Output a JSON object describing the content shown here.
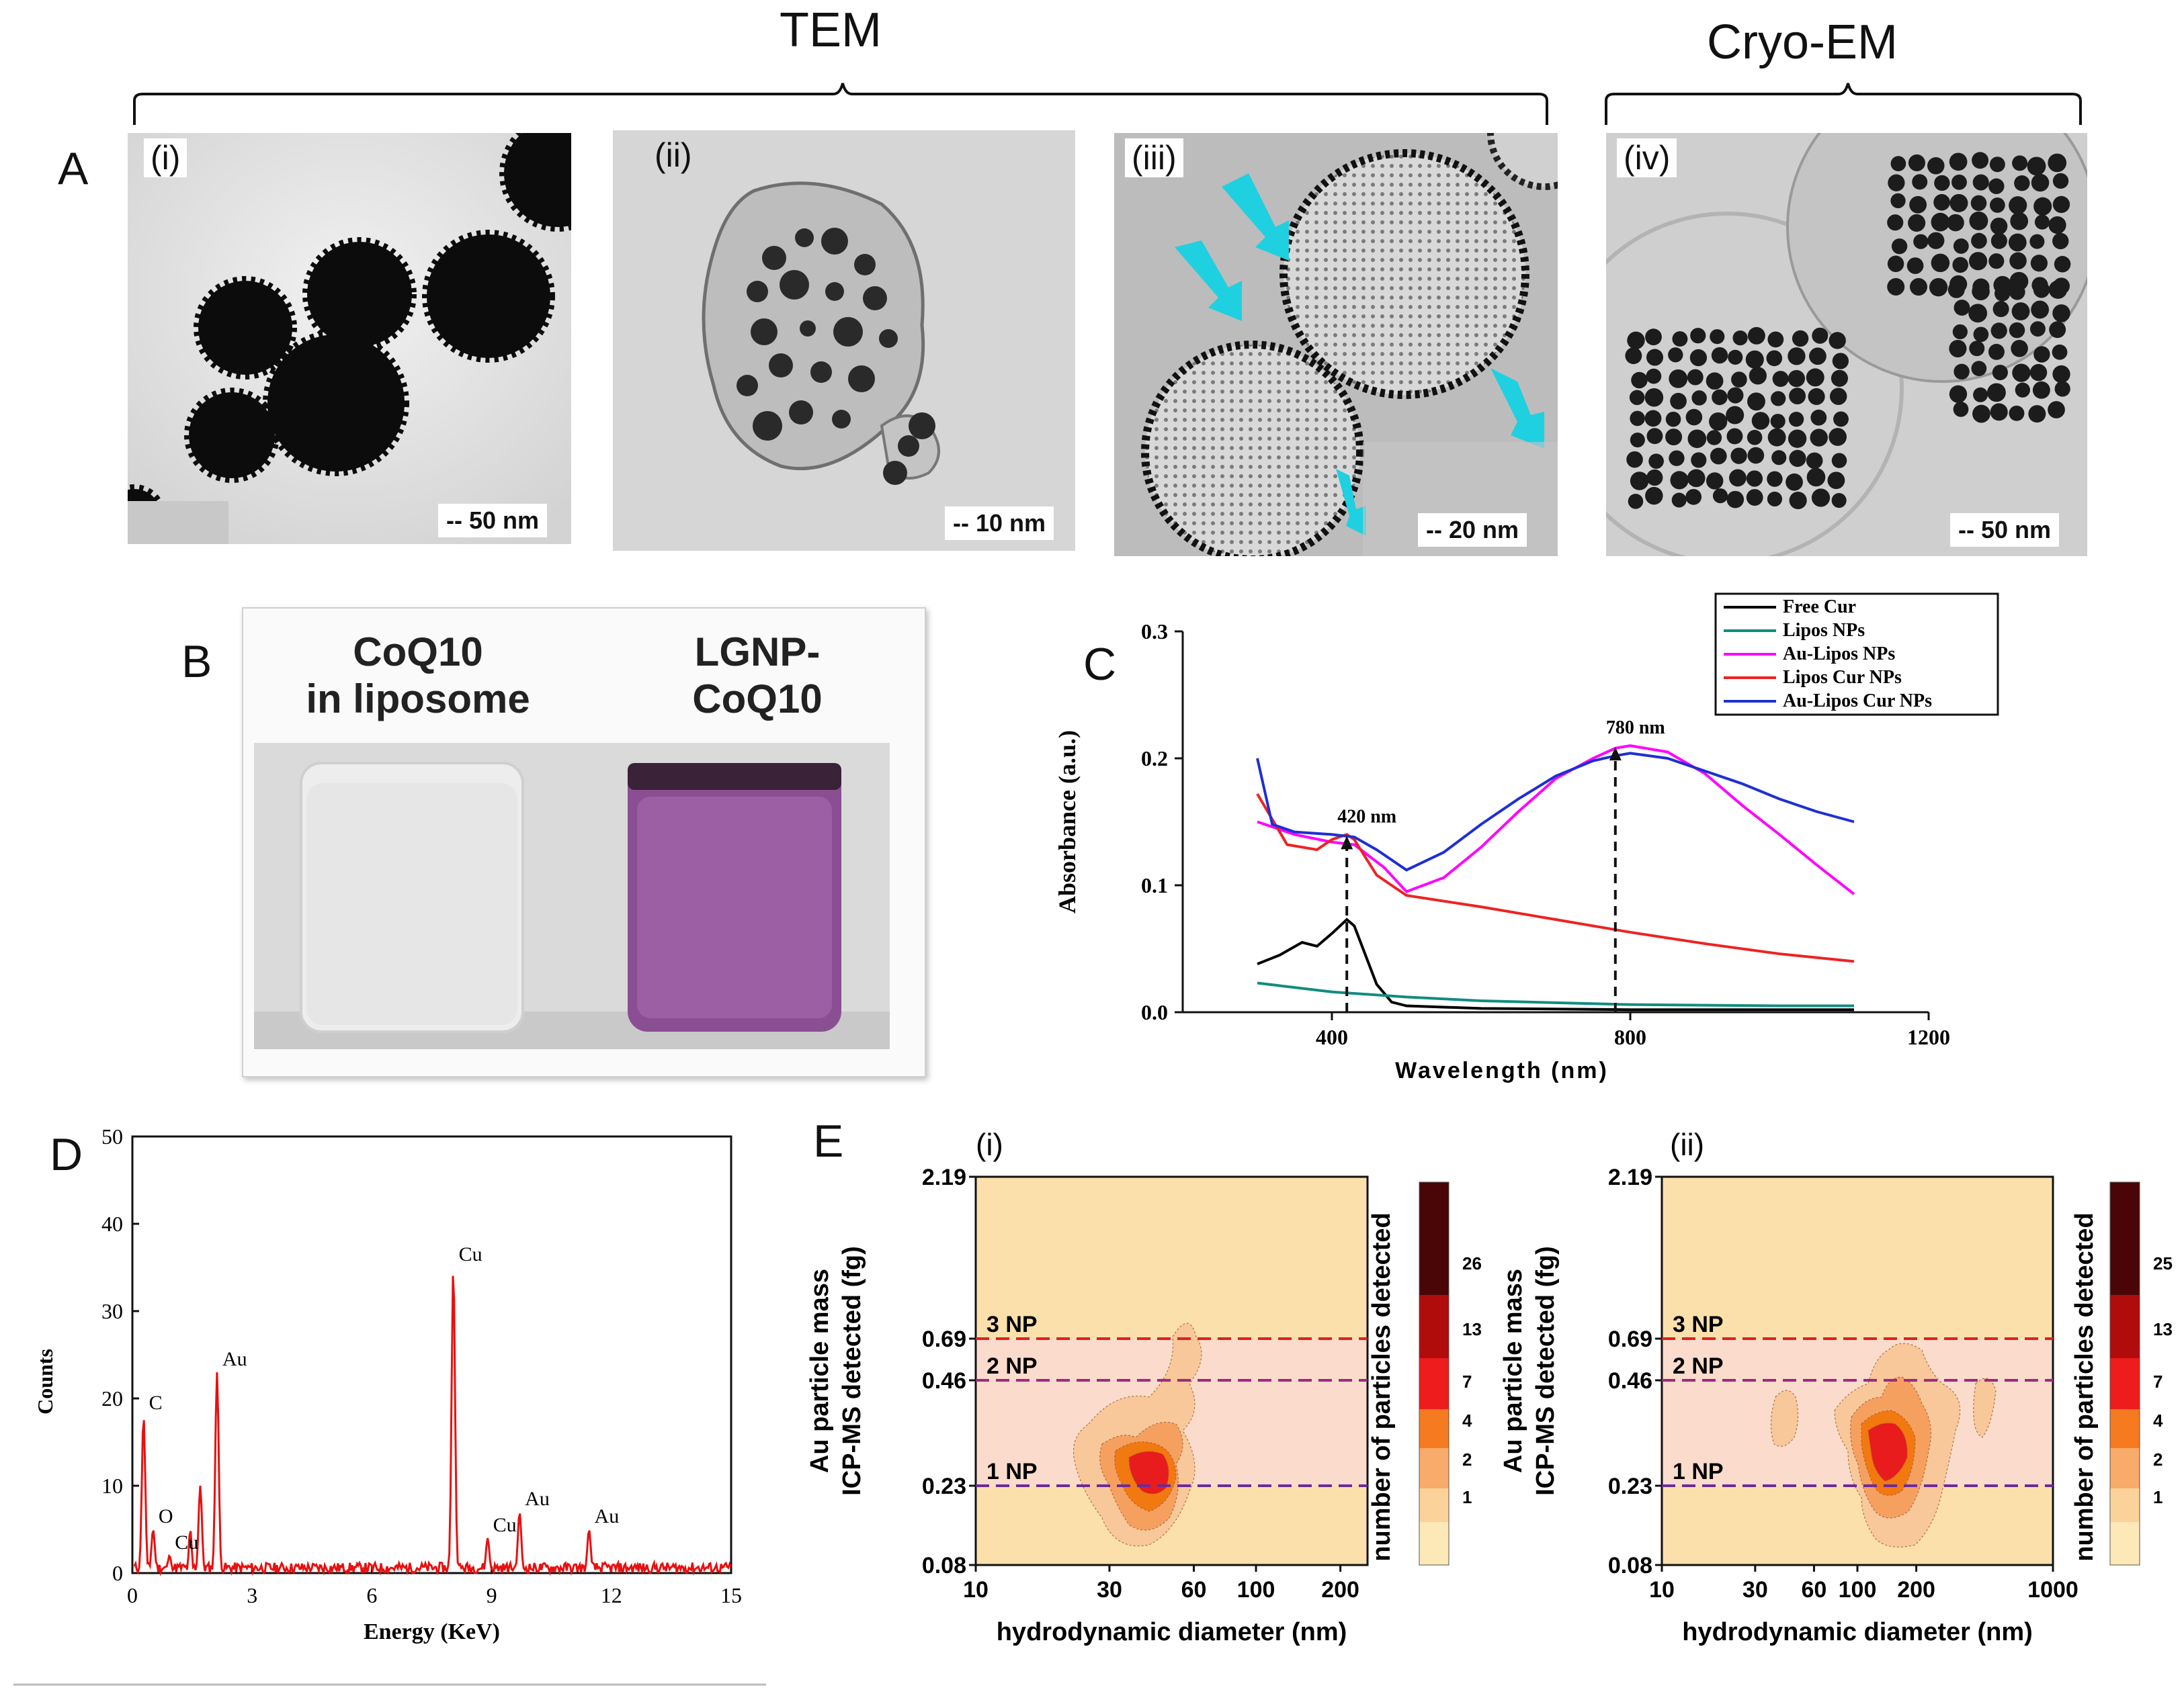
{
  "headers": {
    "tem": "TEM",
    "cryo": "Cryo-EM"
  },
  "panels": {
    "a": "A",
    "b": "B",
    "c": "C",
    "d": "D",
    "e": "E"
  },
  "panel_a": {
    "images": [
      {
        "label": "(i)",
        "scale": "-- 50 nm"
      },
      {
        "label": "(ii)",
        "scale": "-- 10 nm"
      },
      {
        "label": "(iii)",
        "scale": "-- 20 nm"
      },
      {
        "label": "(iv)",
        "scale": "-- 50 nm"
      }
    ]
  },
  "panel_b": {
    "left_label": [
      "CoQ10",
      "in liposome"
    ],
    "right_label": [
      "LGNP-",
      "CoQ10"
    ],
    "colors": {
      "left_liquid": "#e9eaea",
      "right_liquid": "#9a5aa2"
    }
  },
  "chart_data": [
    {
      "id": "C",
      "type": "line",
      "title": "",
      "xlabel": "Wavelength (nm)",
      "ylabel": "Absorbance (a.u.)",
      "xlim": [
        200,
        1200
      ],
      "ylim": [
        0,
        0.3
      ],
      "xticks": [
        400,
        800,
        1200
      ],
      "yticks": [
        0.0,
        0.1,
        0.2,
        0.3
      ],
      "annotations": [
        {
          "text": "420 nm",
          "x": 420,
          "y": 0.14
        },
        {
          "text": "780 nm",
          "x": 780,
          "y": 0.21
        }
      ],
      "series": [
        {
          "name": "Free Cur",
          "color": "#000000",
          "x": [
            300,
            330,
            360,
            380,
            400,
            420,
            430,
            445,
            460,
            480,
            500,
            600,
            800,
            1100
          ],
          "y": [
            0.038,
            0.045,
            0.055,
            0.052,
            0.062,
            0.073,
            0.068,
            0.045,
            0.022,
            0.008,
            0.005,
            0.003,
            0.002,
            0.002
          ]
        },
        {
          "name": "Lipos NPs",
          "color": "#108c80",
          "x": [
            300,
            400,
            500,
            600,
            800,
            1000,
            1100
          ],
          "y": [
            0.023,
            0.016,
            0.012,
            0.009,
            0.006,
            0.005,
            0.005
          ]
        },
        {
          "name": "Au-Lipos NPs",
          "color": "#ff00ff",
          "x": [
            300,
            350,
            400,
            430,
            470,
            500,
            550,
            600,
            650,
            700,
            750,
            780,
            800,
            850,
            900,
            950,
            1000,
            1050,
            1100
          ],
          "y": [
            0.15,
            0.14,
            0.134,
            0.132,
            0.114,
            0.095,
            0.106,
            0.13,
            0.158,
            0.184,
            0.2,
            0.208,
            0.21,
            0.205,
            0.188,
            0.163,
            0.14,
            0.116,
            0.093
          ]
        },
        {
          "name": "Lipos Cur NPs",
          "color": "#ee2222",
          "x": [
            300,
            340,
            380,
            400,
            420,
            430,
            460,
            500,
            600,
            700,
            800,
            900,
            1000,
            1100
          ],
          "y": [
            0.172,
            0.132,
            0.128,
            0.136,
            0.14,
            0.136,
            0.108,
            0.092,
            0.083,
            0.073,
            0.063,
            0.054,
            0.046,
            0.04
          ]
        },
        {
          "name": "Au-Lipos Cur NPs",
          "color": "#1e2fd4",
          "x": [
            300,
            320,
            350,
            400,
            430,
            460,
            500,
            550,
            600,
            650,
            700,
            750,
            780,
            800,
            850,
            900,
            950,
            1000,
            1050,
            1100
          ],
          "y": [
            0.2,
            0.148,
            0.142,
            0.14,
            0.138,
            0.128,
            0.112,
            0.126,
            0.148,
            0.168,
            0.186,
            0.198,
            0.202,
            0.204,
            0.2,
            0.19,
            0.18,
            0.168,
            0.158,
            0.15
          ]
        }
      ]
    },
    {
      "id": "D",
      "type": "line",
      "title": "",
      "xlabel": "Energy (KeV)",
      "ylabel": "Counts",
      "xlim": [
        0,
        15
      ],
      "ylim": [
        0,
        50
      ],
      "xticks": [
        0,
        3,
        6,
        9,
        12,
        15
      ],
      "yticks": [
        0,
        10,
        20,
        30,
        40,
        50
      ],
      "color": "#e81010",
      "peaks": [
        {
          "label": "C",
          "x": 0.28,
          "y": 18
        },
        {
          "label": "O",
          "x": 0.52,
          "y": 5
        },
        {
          "label": "Cu",
          "x": 0.93,
          "y": 2
        },
        {
          "label": "Au",
          "x": 2.12,
          "y": 23
        },
        {
          "label": "Cu",
          "x": 8.04,
          "y": 35
        },
        {
          "label": "Cu",
          "x": 8.9,
          "y": 4
        },
        {
          "label": "Au",
          "x": 9.7,
          "y": 7
        },
        {
          "label": "Au",
          "x": 11.44,
          "y": 5
        }
      ]
    },
    {
      "id": "E-i",
      "type": "heatmap",
      "sublabel": "(i)",
      "xlabel": "hydrodynamic diameter (nm)",
      "ylabel": [
        "Au particle mass",
        "ICP-MS detected (fg)"
      ],
      "colorbar_label": "number of particles detected",
      "xscale": "log",
      "xlim": [
        10,
        250
      ],
      "xticks": [
        10,
        30,
        60,
        100,
        200
      ],
      "yticks": [
        "0.08",
        "0.23",
        "0.46",
        "0.69",
        "2.19"
      ],
      "thresholds": [
        "1 NP",
        "2 NP",
        "3 NP"
      ],
      "colorbar_ticks": [
        "1",
        "2",
        "4",
        "7",
        "13",
        "26"
      ]
    },
    {
      "id": "E-ii",
      "type": "heatmap",
      "sublabel": "(ii)",
      "xlabel": "hydrodynamic diameter (nm)",
      "ylabel": [
        "Au particle mass",
        "ICP-MS detected (fg)"
      ],
      "colorbar_label": "number of particles detected",
      "xscale": "log",
      "xlim": [
        10,
        1000
      ],
      "xticks": [
        10,
        30,
        60,
        100,
        200,
        1000
      ],
      "yticks": [
        "0.08",
        "0.23",
        "0.46",
        "0.69",
        "2.19"
      ],
      "thresholds": [
        "1 NP",
        "2 NP",
        "3 NP"
      ],
      "colorbar_ticks": [
        "1",
        "2",
        "4",
        "7",
        "13",
        "25"
      ]
    }
  ]
}
